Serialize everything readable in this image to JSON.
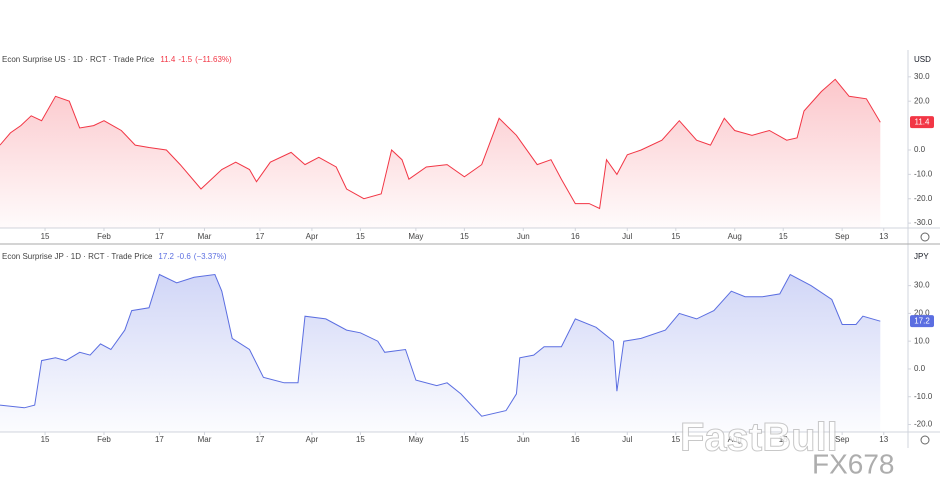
{
  "chart_data": [
    {
      "type": "area",
      "title": "Econ Surprise US · 1D · RCT · Trade Price",
      "change": "-1.5",
      "change_pct": "(−11.63%)",
      "currency": "USD",
      "color": "#f23645",
      "x": [
        2,
        5,
        8,
        11,
        14,
        18,
        22,
        25,
        29,
        32,
        37,
        41,
        45,
        50,
        54,
        60,
        66,
        70,
        74,
        76,
        80,
        86,
        90,
        94,
        99,
        102,
        107,
        112,
        115,
        118,
        120,
        125,
        131,
        136,
        141,
        146,
        151,
        157,
        161,
        164,
        168,
        172,
        175,
        177,
        180,
        183,
        187,
        193,
        198,
        203,
        207,
        211,
        214,
        219,
        224,
        229,
        232,
        234,
        239,
        243,
        247,
        252,
        256
      ],
      "values": [
        2,
        7,
        10,
        14,
        12,
        22,
        20,
        9,
        10,
        12,
        8,
        2,
        1,
        0,
        -6,
        -16,
        -8,
        -5,
        -8,
        -13,
        -5,
        -1,
        -6,
        -3,
        -7,
        -16,
        -20,
        -18,
        0,
        -4,
        -12,
        -7,
        -6,
        -11,
        -6,
        13,
        6,
        -6,
        -4,
        -12,
        -22,
        -22,
        -24,
        -4,
        -10,
        -2,
        0,
        4,
        12,
        4,
        2,
        13,
        8,
        6,
        8,
        4,
        5,
        16,
        24,
        29,
        22,
        21,
        11.4
      ],
      "xlim": [
        2,
        264
      ],
      "ylim": [
        -32,
        41
      ],
      "xticks": [
        {
          "value": 15,
          "label": "15"
        },
        {
          "value": 32,
          "label": "Feb"
        },
        {
          "value": 48,
          "label": "17"
        },
        {
          "value": 61,
          "label": "Mar"
        },
        {
          "value": 77,
          "label": "17"
        },
        {
          "value": 92,
          "label": "Apr"
        },
        {
          "value": 106,
          "label": "15"
        },
        {
          "value": 122,
          "label": "May"
        },
        {
          "value": 136,
          "label": "15"
        },
        {
          "value": 153,
          "label": "Jun"
        },
        {
          "value": 168,
          "label": "16"
        },
        {
          "value": 183,
          "label": "Jul"
        },
        {
          "value": 197,
          "label": "15"
        },
        {
          "value": 214,
          "label": "Aug"
        },
        {
          "value": 228,
          "label": "15"
        },
        {
          "value": 245,
          "label": "Sep"
        },
        {
          "value": 257,
          "label": "13"
        }
      ],
      "yticks": [
        {
          "value": 30,
          "label": "30.0"
        },
        {
          "value": 20,
          "label": "20.0"
        },
        {
          "value": 0,
          "label": "0.0"
        },
        {
          "value": -10,
          "label": "-10.0"
        },
        {
          "value": -20,
          "label": "-20.0"
        },
        {
          "value": -30,
          "label": "-30.0"
        }
      ]
    },
    {
      "type": "area",
      "title": "Econ Surprise JP · 1D · RCT · Trade Price",
      "change": "-0.6",
      "change_pct": "(−3.37%)",
      "currency": "JPY",
      "color": "#5b6ee1",
      "x": [
        2,
        9,
        12,
        14,
        18,
        21,
        25,
        28,
        31,
        34,
        38,
        40,
        45,
        48,
        53,
        58,
        64,
        66,
        69,
        74,
        78,
        84,
        88,
        90,
        96,
        102,
        106,
        111,
        113,
        119,
        122,
        128,
        131,
        135,
        141,
        148,
        151,
        152,
        156,
        159,
        164,
        168,
        174,
        179,
        180,
        182,
        187,
        194,
        198,
        203,
        208,
        213,
        217,
        222,
        227,
        230,
        236,
        242,
        245,
        249,
        251,
        256
      ],
      "values": [
        -13,
        -14,
        -13,
        3,
        4,
        3,
        6,
        5,
        9,
        7,
        14,
        21,
        22,
        34,
        31,
        33,
        34,
        28,
        11,
        7,
        -3,
        -5,
        -5,
        19,
        18,
        14,
        13,
        10,
        6,
        7,
        -4,
        -6,
        -5,
        -9,
        -17,
        -15,
        -9,
        4,
        5,
        8,
        8,
        18,
        15,
        10,
        -8,
        10,
        11,
        14,
        20,
        18,
        21,
        28,
        26,
        26,
        27,
        34,
        30,
        25,
        16,
        16,
        19,
        17.2
      ],
      "xlim": [
        2,
        264
      ],
      "ylim": [
        -22.7,
        43.9
      ],
      "xticks": [
        {
          "value": 15,
          "label": "15"
        },
        {
          "value": 32,
          "label": "Feb"
        },
        {
          "value": 48,
          "label": "17"
        },
        {
          "value": 61,
          "label": "Mar"
        },
        {
          "value": 77,
          "label": "17"
        },
        {
          "value": 92,
          "label": "Apr"
        },
        {
          "value": 106,
          "label": "15"
        },
        {
          "value": 122,
          "label": "May"
        },
        {
          "value": 136,
          "label": "15"
        },
        {
          "value": 153,
          "label": "Jun"
        },
        {
          "value": 168,
          "label": "16"
        },
        {
          "value": 183,
          "label": "Jul"
        },
        {
          "value": 197,
          "label": "15"
        },
        {
          "value": 214,
          "label": "Aug"
        },
        {
          "value": 228,
          "label": "15"
        },
        {
          "value": 245,
          "label": "Sep"
        },
        {
          "value": 257,
          "label": "13"
        }
      ],
      "yticks": [
        {
          "value": 30,
          "label": "30.0"
        },
        {
          "value": 20,
          "label": "20.0"
        },
        {
          "value": 10,
          "label": "10.0"
        },
        {
          "value": 0,
          "label": "0.0"
        },
        {
          "value": -10,
          "label": "-10.0"
        },
        {
          "value": -20,
          "label": "-20.0"
        }
      ]
    }
  ],
  "watermark": [
    "FastBull",
    "FX678"
  ]
}
